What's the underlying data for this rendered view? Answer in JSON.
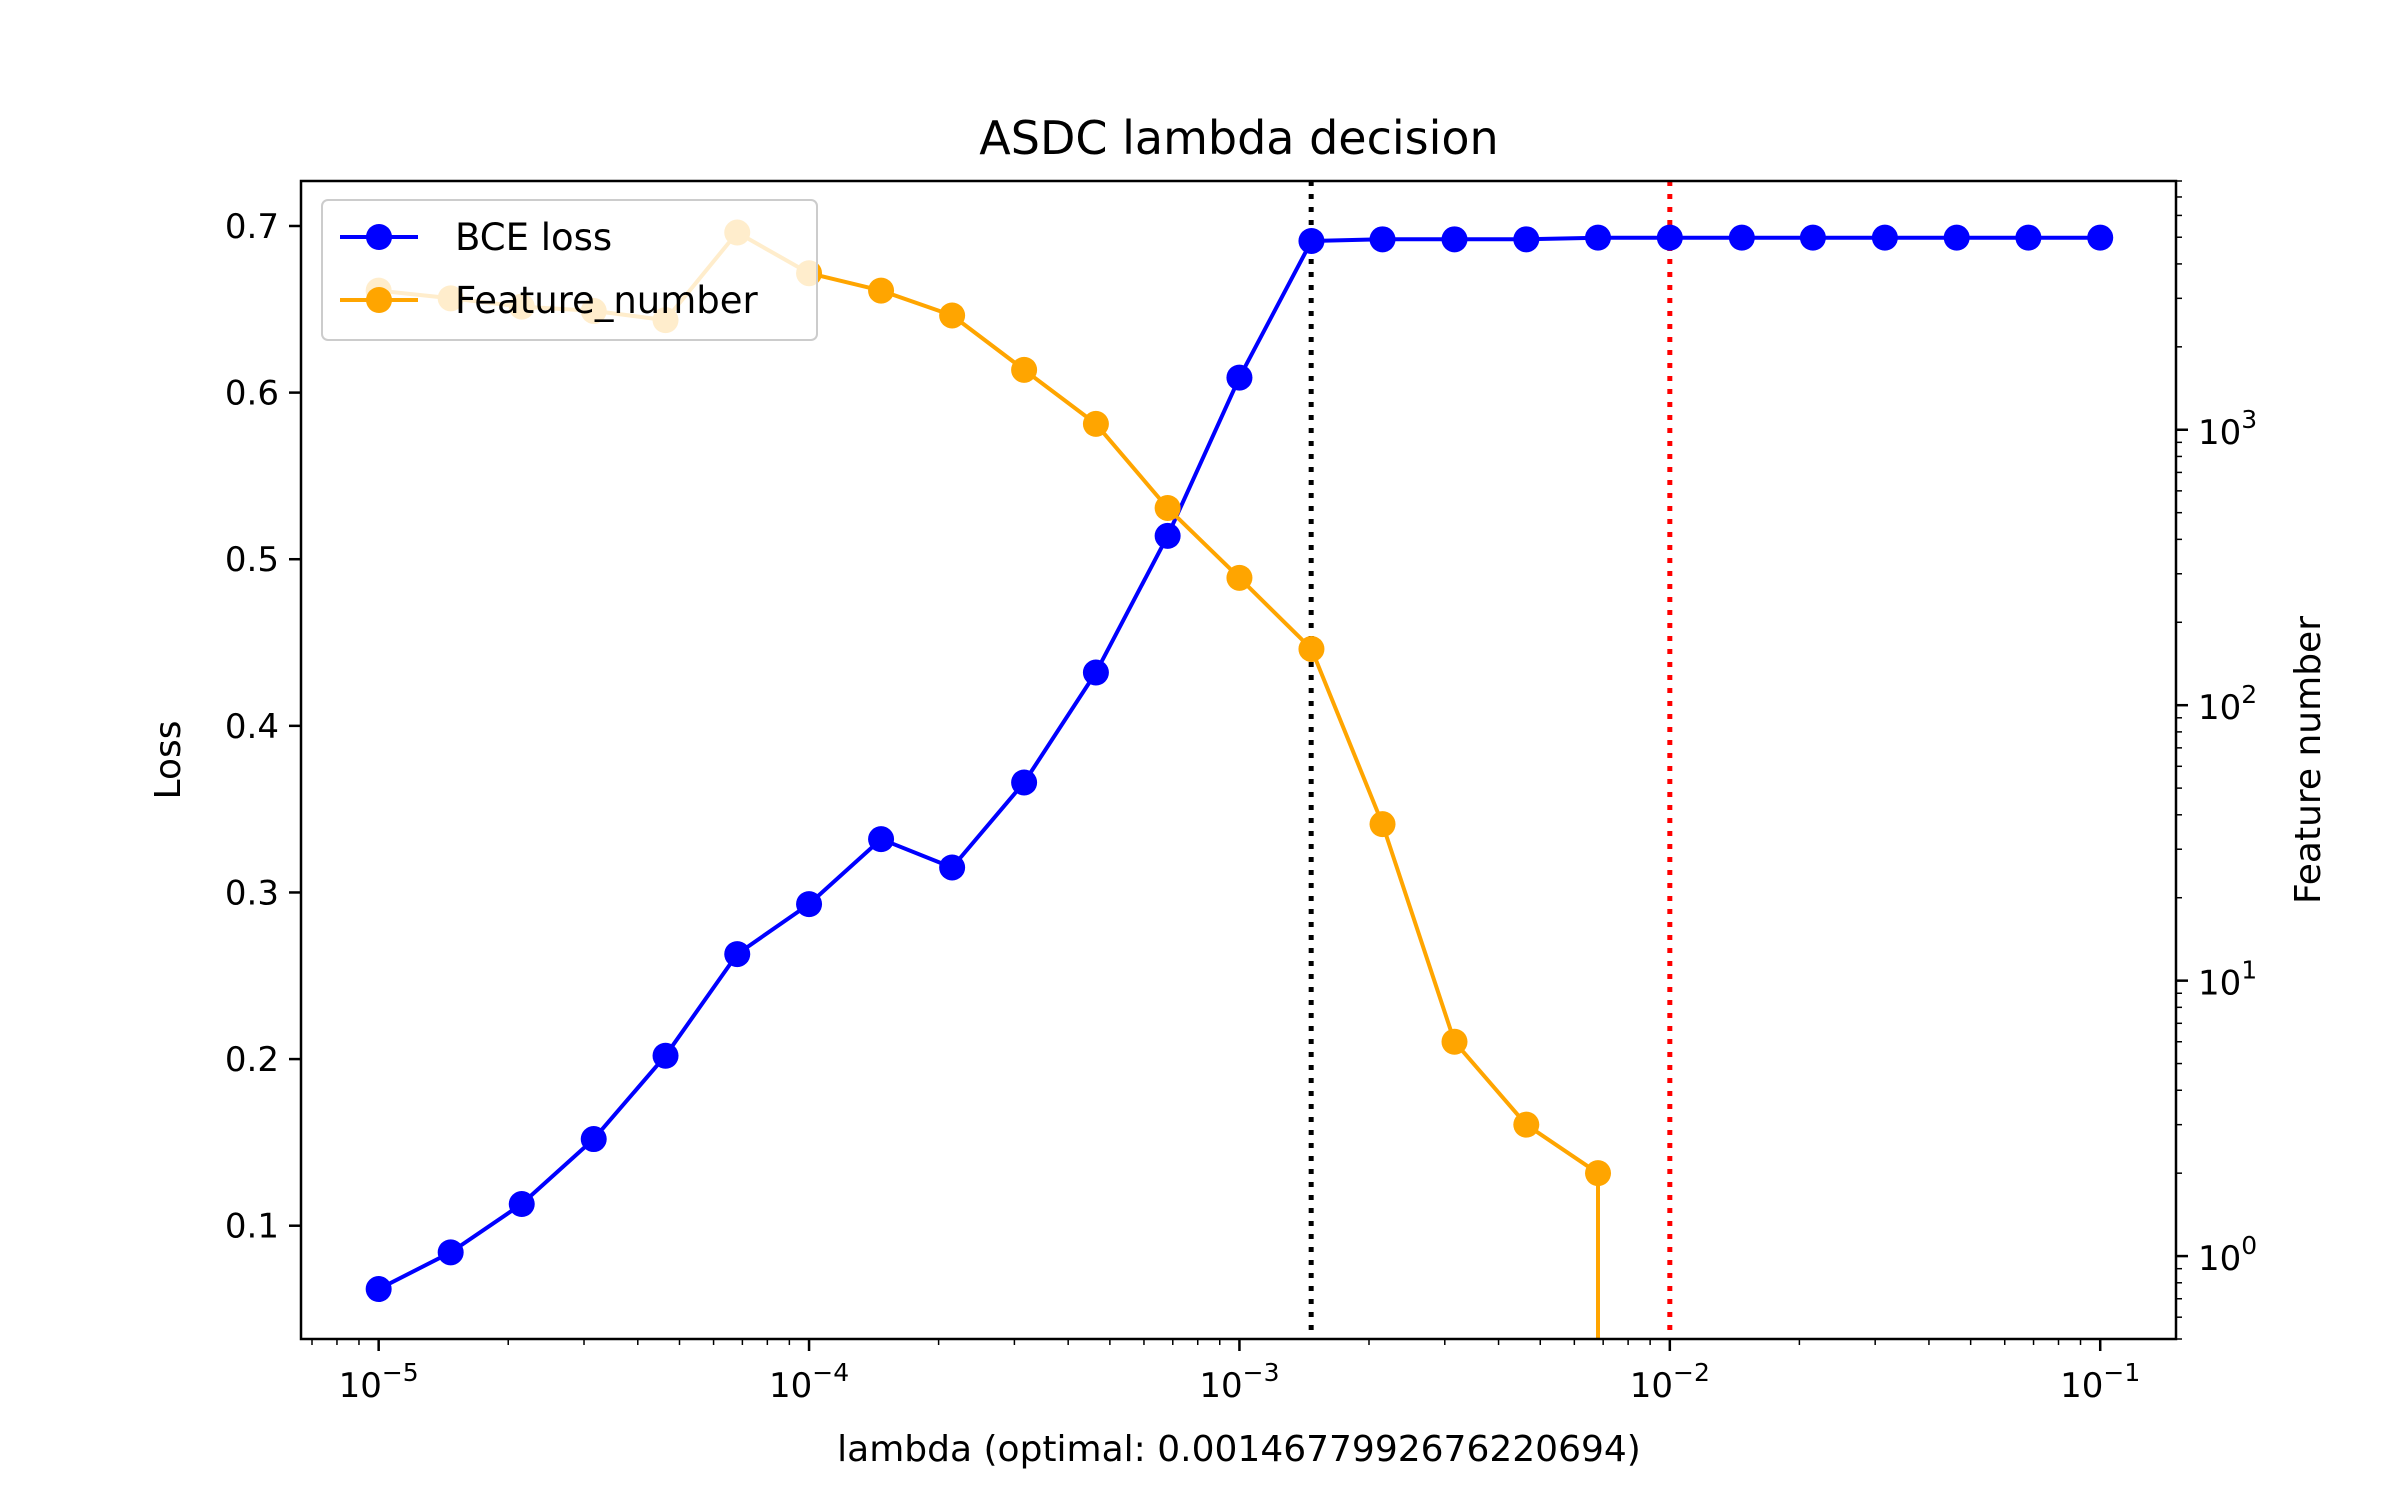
{
  "chart_data": {
    "type": "line",
    "title": "ASDC lambda decision",
    "xlabel": "lambda (optimal: 0.0014677992676220694)",
    "ylabel": "Loss",
    "y2label": "Feature number",
    "xscale": "log",
    "y2scale": "log",
    "xlim": [
      6.6e-06,
      0.15
    ],
    "ylim": [
      0.032,
      0.727
    ],
    "y2lim": [
      0.5,
      8000
    ],
    "x_ticks": [
      {
        "value": 1e-05,
        "base": "10",
        "exp": "−5"
      },
      {
        "value": 0.0001,
        "base": "10",
        "exp": "−4"
      },
      {
        "value": 0.001,
        "base": "10",
        "exp": "−3"
      },
      {
        "value": 0.01,
        "base": "10",
        "exp": "−2"
      },
      {
        "value": 0.1,
        "base": "10",
        "exp": "−1"
      }
    ],
    "y_ticks": [
      {
        "value": 0.1,
        "label": "0.1"
      },
      {
        "value": 0.2,
        "label": "0.2"
      },
      {
        "value": 0.3,
        "label": "0.3"
      },
      {
        "value": 0.4,
        "label": "0.4"
      },
      {
        "value": 0.5,
        "label": "0.5"
      },
      {
        "value": 0.6,
        "label": "0.6"
      },
      {
        "value": 0.7,
        "label": "0.7"
      }
    ],
    "y2_ticks": [
      {
        "value": 1,
        "base": "10",
        "exp": "0"
      },
      {
        "value": 10,
        "base": "10",
        "exp": "1"
      },
      {
        "value": 100,
        "base": "10",
        "exp": "2"
      },
      {
        "value": 1000,
        "base": "10",
        "exp": "3"
      }
    ],
    "x": [
      1e-05,
      1.47e-05,
      2.15e-05,
      3.16e-05,
      4.64e-05,
      6.81e-05,
      0.0001,
      0.000147,
      0.000215,
      0.000316,
      0.000464,
      0.000681,
      0.001,
      0.00147,
      0.00215,
      0.00316,
      0.00464,
      0.00681,
      0.01,
      0.0147,
      0.0215,
      0.0316,
      0.0464,
      0.0681,
      0.1
    ],
    "series": [
      {
        "name": "BCE loss",
        "axis": "left",
        "color": "#0000ff",
        "values": [
          0.062,
          0.084,
          0.113,
          0.152,
          0.202,
          0.263,
          0.293,
          0.332,
          0.315,
          0.366,
          0.432,
          0.514,
          0.609,
          0.691,
          0.692,
          0.692,
          0.692,
          0.693,
          0.693,
          0.693,
          0.693,
          0.693,
          0.693,
          0.693,
          0.693
        ]
      },
      {
        "name": "Feature_number",
        "axis": "right",
        "color": "#ffa500",
        "values": [
          3200,
          3000,
          2800,
          2700,
          2500,
          5200,
          3700,
          3200,
          2600,
          1650,
          1050,
          520,
          290,
          160,
          37,
          6,
          3,
          2,
          0,
          null,
          null,
          null,
          null,
          null,
          null
        ]
      }
    ],
    "vlines": [
      {
        "x": 0.0014677992676220694,
        "color": "#000000",
        "style": "dotted"
      },
      {
        "x": 0.01,
        "color": "#ff0000",
        "style": "dotted"
      }
    ],
    "legend_position": "top-left",
    "grid": false
  }
}
